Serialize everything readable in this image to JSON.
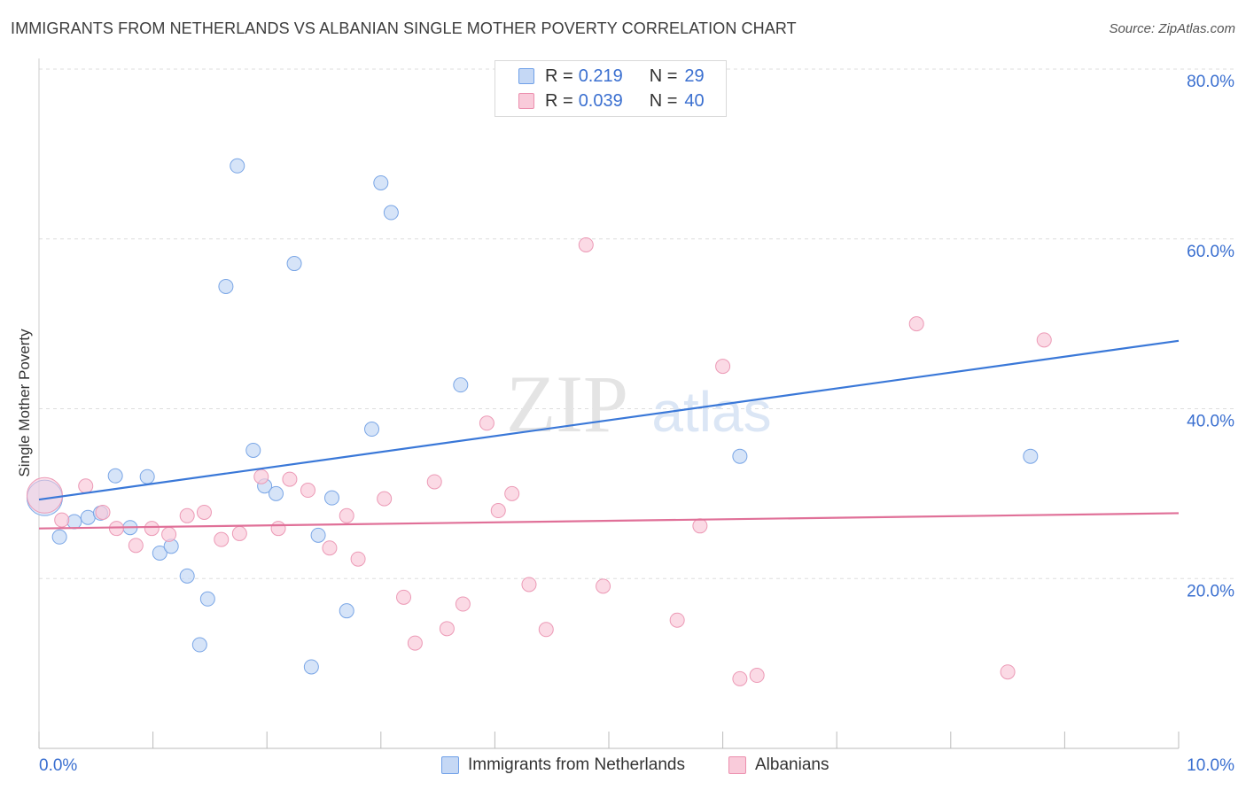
{
  "header": {
    "title": "IMMIGRANTS FROM NETHERLANDS VS ALBANIAN SINGLE MOTHER POVERTY CORRELATION CHART",
    "source": "Source: ZipAtlas.com"
  },
  "watermark": {
    "text_zip": "ZIP",
    "text_atlas": "atlas"
  },
  "stats_legend": [
    {
      "r_label": "R =",
      "r_value": "0.219",
      "n_label": "N =",
      "n_value": "29",
      "color": "#6fa0e8",
      "fill": "#c5d8f5"
    },
    {
      "r_label": "R =",
      "r_value": "0.039",
      "n_label": "N =",
      "n_value": "40",
      "color": "#ec8fae",
      "fill": "#f9cbda"
    }
  ],
  "bottom_legend": [
    "Immigrants from Netherlands",
    "Albanians"
  ],
  "chart_data": {
    "type": "scatter",
    "title": "IMMIGRANTS FROM NETHERLANDS VS ALBANIAN SINGLE MOTHER POVERTY CORRELATION CHART",
    "xlabel": "",
    "ylabel": "Single Mother Poverty",
    "xlim": [
      0,
      10
    ],
    "ylim": [
      0,
      80
    ],
    "x_tick_labels": [
      "0.0%",
      "10.0%"
    ],
    "y_ticks": [
      20,
      40,
      60,
      80
    ],
    "y_tick_labels": [
      "20.0%",
      "40.0%",
      "60.0%",
      "80.0%"
    ],
    "grid": true,
    "series": [
      {
        "name": "Immigrants from Netherlands",
        "color": "#3a78d8",
        "point_fill": "#c5d8f5",
        "point_stroke": "#7aa6e6",
        "trend": {
          "x": [
            0,
            10
          ],
          "y": [
            29.3,
            48.0
          ]
        },
        "points": [
          [
            0.05,
            29.5
          ],
          [
            0.18,
            24.9
          ],
          [
            0.31,
            26.7
          ],
          [
            0.43,
            27.2
          ],
          [
            0.54,
            27.7
          ],
          [
            0.67,
            32.1
          ],
          [
            0.8,
            26.0
          ],
          [
            0.95,
            32.0
          ],
          [
            1.06,
            23.0
          ],
          [
            1.16,
            23.8
          ],
          [
            1.3,
            20.3
          ],
          [
            1.41,
            12.2
          ],
          [
            1.48,
            17.6
          ],
          [
            1.64,
            54.4
          ],
          [
            1.74,
            68.6
          ],
          [
            1.88,
            35.1
          ],
          [
            1.98,
            30.9
          ],
          [
            2.08,
            30.0
          ],
          [
            2.24,
            57.1
          ],
          [
            2.39,
            9.6
          ],
          [
            2.45,
            25.1
          ],
          [
            2.57,
            29.5
          ],
          [
            2.7,
            16.2
          ],
          [
            2.92,
            37.6
          ],
          [
            3.0,
            66.6
          ],
          [
            3.09,
            63.1
          ],
          [
            3.7,
            42.8
          ],
          [
            6.15,
            34.4
          ],
          [
            8.7,
            34.4
          ]
        ]
      },
      {
        "name": "Albanians",
        "color": "#e07098",
        "point_fill": "#f9cbda",
        "point_stroke": "#ec9ab6",
        "trend": {
          "x": [
            0,
            10
          ],
          "y": [
            25.9,
            27.7
          ]
        },
        "points": [
          [
            0.05,
            29.8
          ],
          [
            0.2,
            26.9
          ],
          [
            0.41,
            30.9
          ],
          [
            0.56,
            27.8
          ],
          [
            0.68,
            25.9
          ],
          [
            0.85,
            23.9
          ],
          [
            0.99,
            25.9
          ],
          [
            1.14,
            25.2
          ],
          [
            1.3,
            27.4
          ],
          [
            1.45,
            27.8
          ],
          [
            1.6,
            24.6
          ],
          [
            1.76,
            25.3
          ],
          [
            1.95,
            32.0
          ],
          [
            2.1,
            25.9
          ],
          [
            2.2,
            31.7
          ],
          [
            2.36,
            30.4
          ],
          [
            2.55,
            23.6
          ],
          [
            2.7,
            27.4
          ],
          [
            2.8,
            22.3
          ],
          [
            3.03,
            29.4
          ],
          [
            3.2,
            17.8
          ],
          [
            3.3,
            12.4
          ],
          [
            3.47,
            31.4
          ],
          [
            3.58,
            14.1
          ],
          [
            3.72,
            17.0
          ],
          [
            3.93,
            38.3
          ],
          [
            4.03,
            28.0
          ],
          [
            4.15,
            30.0
          ],
          [
            4.3,
            19.3
          ],
          [
            4.45,
            14.0
          ],
          [
            4.8,
            59.3
          ],
          [
            4.95,
            19.1
          ],
          [
            5.6,
            15.1
          ],
          [
            5.8,
            26.2
          ],
          [
            6.0,
            45.0
          ],
          [
            6.15,
            8.2
          ],
          [
            6.3,
            8.6
          ],
          [
            7.7,
            50.0
          ],
          [
            8.5,
            9.0
          ],
          [
            8.82,
            48.1
          ]
        ]
      }
    ],
    "legend": {
      "stats": [
        {
          "series": "Immigrants from Netherlands",
          "R": 0.219,
          "N": 29
        },
        {
          "series": "Albanians",
          "R": 0.039,
          "N": 40
        }
      ],
      "placement": "top-center"
    }
  }
}
